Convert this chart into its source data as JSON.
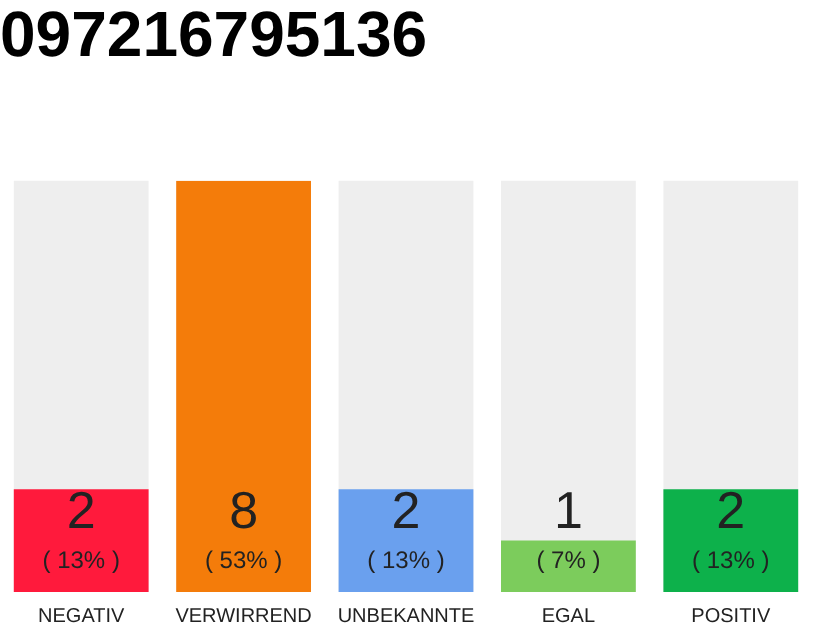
{
  "chart_data": {
    "type": "bar",
    "title": "097216795136",
    "categories": [
      "NEGATIV",
      "VERWIRREND",
      "UNBEKANNTE",
      "EGAL",
      "POSITIV"
    ],
    "values": [
      2,
      8,
      2,
      1,
      2
    ],
    "colors": [
      "#ff1a3c",
      "#f47c0a",
      "#6aa0ee",
      "#7ccc5c",
      "#0db14b"
    ],
    "tick_labels": "x",
    "grid": false,
    "legend": false,
    "data_labels": true,
    "annotations": [
      "( 13% )",
      "( 53% )",
      "( 13% )",
      "( 7% )",
      "( 13% )"
    ]
  }
}
